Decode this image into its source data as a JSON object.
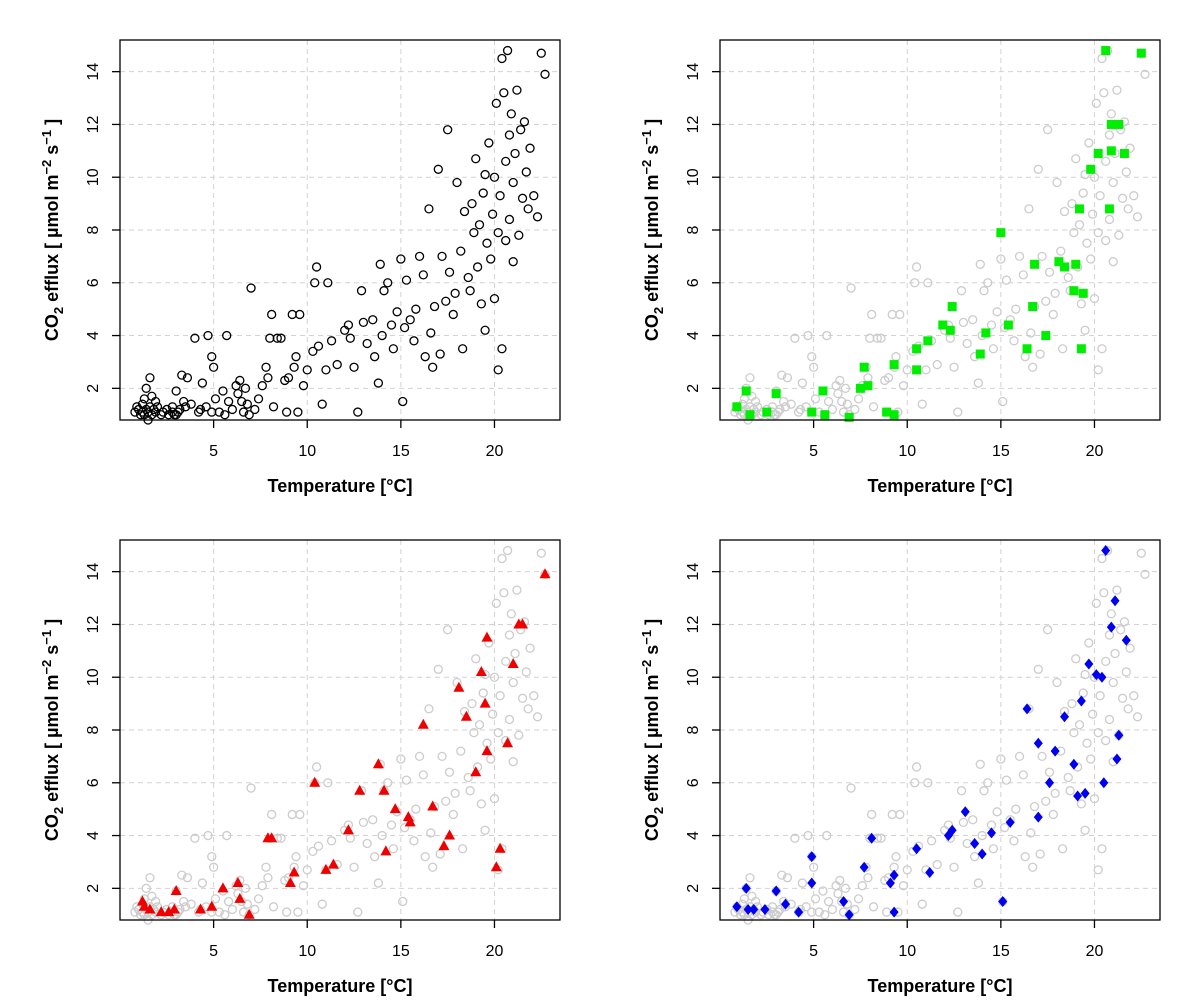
{
  "chart_data": [
    {
      "type": "scatter",
      "panel": "top-left",
      "xlabel": "Temperature [°C]",
      "ylabel": "CO₂ efflux [ µmol m⁻² s⁻¹ ]",
      "ylabel_parts": {
        "pre": "CO",
        "sub": "2",
        "mid": " efflux [ µmol m",
        "sup1": "−2",
        "mid2": " s",
        "sup2": "−1",
        "end": " ]"
      },
      "xlim": [
        0,
        23.5
      ],
      "ylim": [
        0.8,
        15.2
      ],
      "xticks": [
        "5",
        "10",
        "15",
        "20"
      ],
      "yticks": [
        "2",
        "4",
        "6",
        "8",
        "10",
        "12",
        "14"
      ],
      "grid": true,
      "background_series": null,
      "series": [
        {
          "marker": "open-circle",
          "color": "#000000",
          "source": "all"
        }
      ]
    },
    {
      "type": "scatter",
      "panel": "top-right",
      "xlabel": "Temperature [°C]",
      "ylabel": "CO₂ efflux [ µmol m⁻² s⁻¹ ]",
      "xlim": [
        0,
        23.5
      ],
      "ylim": [
        0.8,
        15.2
      ],
      "xticks": [
        "5",
        "10",
        "15",
        "20"
      ],
      "yticks": [
        "2",
        "4",
        "6",
        "8",
        "10",
        "12",
        "14"
      ],
      "grid": true,
      "background_series": {
        "marker": "open-circle",
        "color": "#cccccc",
        "source": "all"
      },
      "series": [
        {
          "marker": "square",
          "color": "#00ee00",
          "points": [
            [
              0.9,
              1.3
            ],
            [
              1.4,
              1.9
            ],
            [
              1.6,
              1.0
            ],
            [
              2.5,
              1.1
            ],
            [
              3.0,
              1.8
            ],
            [
              4.9,
              1.1
            ],
            [
              5.5,
              1.9
            ],
            [
              5.6,
              1.0
            ],
            [
              6.9,
              0.9
            ],
            [
              7.5,
              2.0
            ],
            [
              7.7,
              2.8
            ],
            [
              7.9,
              2.1
            ],
            [
              8.9,
              1.1
            ],
            [
              9.3,
              1.0
            ],
            [
              9.3,
              2.9
            ],
            [
              10.5,
              2.7
            ],
            [
              10.5,
              3.5
            ],
            [
              11.1,
              3.8
            ],
            [
              11.9,
              4.4
            ],
            [
              12.3,
              4.2
            ],
            [
              12.4,
              5.1
            ],
            [
              13.9,
              3.3
            ],
            [
              14.2,
              4.1
            ],
            [
              15.0,
              7.9
            ],
            [
              15.4,
              4.4
            ],
            [
              16.4,
              3.5
            ],
            [
              16.7,
              5.1
            ],
            [
              16.8,
              6.7
            ],
            [
              17.4,
              4.0
            ],
            [
              18.1,
              6.8
            ],
            [
              18.4,
              6.6
            ],
            [
              18.9,
              5.7
            ],
            [
              19.0,
              6.7
            ],
            [
              19.2,
              8.8
            ],
            [
              19.3,
              3.5
            ],
            [
              19.4,
              5.6
            ],
            [
              19.8,
              10.3
            ],
            [
              20.2,
              10.9
            ],
            [
              20.6,
              14.8
            ],
            [
              20.8,
              8.8
            ],
            [
              20.9,
              12.0
            ],
            [
              20.9,
              11.0
            ],
            [
              21.3,
              12.0
            ],
            [
              21.6,
              10.9
            ],
            [
              22.5,
              14.7
            ]
          ]
        }
      ]
    },
    {
      "type": "scatter",
      "panel": "bottom-left",
      "xlabel": "Temperature [°C]",
      "ylabel": "CO₂ efflux [ µmol m⁻² s⁻¹ ]",
      "xlim": [
        0,
        23.5
      ],
      "ylim": [
        0.8,
        15.2
      ],
      "xticks": [
        "5",
        "10",
        "15",
        "20"
      ],
      "yticks": [
        "2",
        "4",
        "6",
        "8",
        "10",
        "12",
        "14"
      ],
      "grid": true,
      "background_series": {
        "marker": "open-circle",
        "color": "#cccccc",
        "source": "all"
      },
      "series": [
        {
          "marker": "triangle",
          "color": "#ee0000",
          "points": [
            [
              1.2,
              1.5
            ],
            [
              1.3,
              1.3
            ],
            [
              1.6,
              1.2
            ],
            [
              2.2,
              1.1
            ],
            [
              2.6,
              1.1
            ],
            [
              2.9,
              1.2
            ],
            [
              3.0,
              1.9
            ],
            [
              4.3,
              1.2
            ],
            [
              4.9,
              1.3
            ],
            [
              5.5,
              2.0
            ],
            [
              6.3,
              2.2
            ],
            [
              6.4,
              1.6
            ],
            [
              6.9,
              1.0
            ],
            [
              7.9,
              3.9
            ],
            [
              8.1,
              3.9
            ],
            [
              9.1,
              2.2
            ],
            [
              9.3,
              2.6
            ],
            [
              10.4,
              6.0
            ],
            [
              11.0,
              2.7
            ],
            [
              11.4,
              2.9
            ],
            [
              12.2,
              4.2
            ],
            [
              12.8,
              5.7
            ],
            [
              13.8,
              6.7
            ],
            [
              14.1,
              5.7
            ],
            [
              14.2,
              3.4
            ],
            [
              14.7,
              5.0
            ],
            [
              15.4,
              4.7
            ],
            [
              15.5,
              4.5
            ],
            [
              16.2,
              8.2
            ],
            [
              16.7,
              5.1
            ],
            [
              17.3,
              3.6
            ],
            [
              17.6,
              4.0
            ],
            [
              18.1,
              9.6
            ],
            [
              18.5,
              8.5
            ],
            [
              19.0,
              6.4
            ],
            [
              19.3,
              10.2
            ],
            [
              19.5,
              9.0
            ],
            [
              19.6,
              11.5
            ],
            [
              19.6,
              7.2
            ],
            [
              20.1,
              2.8
            ],
            [
              20.3,
              3.5
            ],
            [
              20.7,
              7.5
            ],
            [
              21.0,
              10.5
            ],
            [
              21.3,
              12.0
            ],
            [
              21.5,
              12.0
            ],
            [
              22.7,
              13.9
            ]
          ]
        }
      ]
    },
    {
      "type": "scatter",
      "panel": "bottom-right",
      "xlabel": "Temperature [°C]",
      "ylabel": "CO₂ efflux [ µmol m⁻² s⁻¹ ]",
      "xlim": [
        0,
        23.5
      ],
      "ylim": [
        0.8,
        15.2
      ],
      "xticks": [
        "5",
        "10",
        "15",
        "20"
      ],
      "yticks": [
        "2",
        "4",
        "6",
        "8",
        "10",
        "12",
        "14"
      ],
      "grid": true,
      "background_series": {
        "marker": "open-circle",
        "color": "#cccccc",
        "source": "all"
      },
      "series": [
        {
          "marker": "diamond",
          "color": "#0000ee",
          "points": [
            [
              0.9,
              1.3
            ],
            [
              1.4,
              2.0
            ],
            [
              1.5,
              1.2
            ],
            [
              1.8,
              1.2
            ],
            [
              2.4,
              1.2
            ],
            [
              3.0,
              1.9
            ],
            [
              3.5,
              1.4
            ],
            [
              4.2,
              1.1
            ],
            [
              4.9,
              3.2
            ],
            [
              4.9,
              2.2
            ],
            [
              6.6,
              1.5
            ],
            [
              6.9,
              1.0
            ],
            [
              7.7,
              2.8
            ],
            [
              8.1,
              3.9
            ],
            [
              9.1,
              2.2
            ],
            [
              9.3,
              1.1
            ],
            [
              9.3,
              2.5
            ],
            [
              10.5,
              3.5
            ],
            [
              11.2,
              2.6
            ],
            [
              12.2,
              4.0
            ],
            [
              12.4,
              4.2
            ],
            [
              13.1,
              4.9
            ],
            [
              13.6,
              3.7
            ],
            [
              14.0,
              3.3
            ],
            [
              14.5,
              4.1
            ],
            [
              15.1,
              1.5
            ],
            [
              15.5,
              4.5
            ],
            [
              16.4,
              8.8
            ],
            [
              17.0,
              7.5
            ],
            [
              17.0,
              4.7
            ],
            [
              17.6,
              6.0
            ],
            [
              17.9,
              7.2
            ],
            [
              18.4,
              8.5
            ],
            [
              18.9,
              6.7
            ],
            [
              19.1,
              5.5
            ],
            [
              19.3,
              9.1
            ],
            [
              19.5,
              5.6
            ],
            [
              19.7,
              10.5
            ],
            [
              20.1,
              10.1
            ],
            [
              20.4,
              10.0
            ],
            [
              20.5,
              6.0
            ],
            [
              20.6,
              14.8
            ],
            [
              20.9,
              11.9
            ],
            [
              21.1,
              12.9
            ],
            [
              21.2,
              6.9
            ],
            [
              21.3,
              7.8
            ],
            [
              21.7,
              11.4
            ]
          ]
        }
      ]
    }
  ],
  "all_points": [
    [
      0.8,
      1.1
    ],
    [
      0.9,
      1.3
    ],
    [
      1.0,
      1.2
    ],
    [
      1.1,
      1.0
    ],
    [
      1.2,
      1.4
    ],
    [
      1.2,
      1.1
    ],
    [
      1.3,
      1.6
    ],
    [
      1.3,
      1.0
    ],
    [
      1.4,
      1.2
    ],
    [
      1.4,
      2.0
    ],
    [
      1.5,
      1.1
    ],
    [
      1.5,
      0.8
    ],
    [
      1.6,
      1.3
    ],
    [
      1.6,
      2.4
    ],
    [
      1.7,
      1.0
    ],
    [
      1.7,
      1.7
    ],
    [
      1.8,
      1.2
    ],
    [
      1.9,
      1.5
    ],
    [
      1.9,
      1.1
    ],
    [
      2.0,
      1.3
    ],
    [
      2.2,
      1.0
    ],
    [
      2.3,
      1.1
    ],
    [
      2.5,
      1.2
    ],
    [
      2.6,
      1.0
    ],
    [
      2.8,
      1.1
    ],
    [
      2.8,
      1.3
    ],
    [
      2.9,
      1.0
    ],
    [
      3.0,
      1.0
    ],
    [
      3.0,
      1.9
    ],
    [
      3.1,
      1.1
    ],
    [
      3.2,
      1.2
    ],
    [
      3.3,
      2.5
    ],
    [
      3.4,
      1.5
    ],
    [
      3.5,
      1.3
    ],
    [
      3.6,
      2.4
    ],
    [
      3.8,
      1.4
    ],
    [
      4.0,
      3.9
    ],
    [
      4.2,
      1.1
    ],
    [
      4.3,
      1.2
    ],
    [
      4.4,
      2.2
    ],
    [
      4.6,
      1.3
    ],
    [
      4.7,
      4.0
    ],
    [
      4.9,
      1.1
    ],
    [
      4.9,
      3.2
    ],
    [
      5.0,
      2.8
    ],
    [
      5.1,
      1.6
    ],
    [
      5.3,
      1.1
    ],
    [
      5.5,
      1.9
    ],
    [
      5.6,
      1.0
    ],
    [
      5.7,
      4.0
    ],
    [
      5.8,
      1.5
    ],
    [
      6.0,
      1.2
    ],
    [
      6.2,
      2.1
    ],
    [
      6.3,
      1.8
    ],
    [
      6.4,
      2.3
    ],
    [
      6.5,
      1.5
    ],
    [
      6.6,
      1.1
    ],
    [
      6.7,
      2.0
    ],
    [
      6.8,
      1.4
    ],
    [
      6.9,
      1.0
    ],
    [
      7.0,
      5.8
    ],
    [
      7.2,
      1.2
    ],
    [
      7.4,
      1.6
    ],
    [
      7.6,
      2.1
    ],
    [
      7.8,
      2.8
    ],
    [
      7.9,
      2.4
    ],
    [
      8.0,
      3.9
    ],
    [
      8.1,
      4.8
    ],
    [
      8.2,
      1.3
    ],
    [
      8.4,
      3.9
    ],
    [
      8.6,
      3.9
    ],
    [
      8.8,
      2.3
    ],
    [
      8.9,
      1.1
    ],
    [
      9.0,
      2.4
    ],
    [
      9.2,
      4.8
    ],
    [
      9.3,
      2.8
    ],
    [
      9.4,
      3.2
    ],
    [
      9.5,
      1.1
    ],
    [
      9.6,
      4.8
    ],
    [
      9.8,
      2.1
    ],
    [
      10.0,
      2.7
    ],
    [
      10.3,
      3.4
    ],
    [
      10.4,
      6.0
    ],
    [
      10.5,
      6.6
    ],
    [
      10.6,
      3.6
    ],
    [
      10.8,
      1.4
    ],
    [
      11.0,
      2.7
    ],
    [
      11.1,
      6.0
    ],
    [
      11.3,
      3.8
    ],
    [
      11.6,
      2.9
    ],
    [
      12.0,
      4.2
    ],
    [
      12.2,
      4.4
    ],
    [
      12.3,
      3.9
    ],
    [
      12.5,
      2.8
    ],
    [
      12.7,
      1.1
    ],
    [
      12.9,
      5.7
    ],
    [
      13.0,
      4.5
    ],
    [
      13.2,
      3.7
    ],
    [
      13.5,
      4.6
    ],
    [
      13.6,
      3.2
    ],
    [
      13.8,
      2.2
    ],
    [
      13.9,
      6.7
    ],
    [
      14.0,
      4.0
    ],
    [
      14.1,
      5.7
    ],
    [
      14.3,
      6.0
    ],
    [
      14.5,
      4.4
    ],
    [
      14.6,
      3.5
    ],
    [
      14.8,
      4.9
    ],
    [
      15.0,
      6.9
    ],
    [
      15.1,
      1.5
    ],
    [
      15.2,
      4.3
    ],
    [
      15.3,
      6.1
    ],
    [
      15.5,
      4.6
    ],
    [
      15.7,
      3.8
    ],
    [
      15.8,
      5.0
    ],
    [
      16.0,
      7.0
    ],
    [
      16.2,
      6.3
    ],
    [
      16.3,
      3.2
    ],
    [
      16.5,
      8.8
    ],
    [
      16.6,
      4.1
    ],
    [
      16.7,
      2.8
    ],
    [
      16.8,
      5.1
    ],
    [
      17.0,
      10.3
    ],
    [
      17.1,
      3.3
    ],
    [
      17.2,
      7.0
    ],
    [
      17.4,
      5.3
    ],
    [
      17.5,
      11.8
    ],
    [
      17.6,
      6.4
    ],
    [
      17.8,
      4.8
    ],
    [
      17.9,
      5.6
    ],
    [
      18.0,
      9.8
    ],
    [
      18.2,
      7.2
    ],
    [
      18.3,
      3.5
    ],
    [
      18.4,
      8.7
    ],
    [
      18.6,
      6.2
    ],
    [
      18.7,
      5.7
    ],
    [
      18.8,
      9.0
    ],
    [
      18.9,
      7.9
    ],
    [
      19.0,
      10.7
    ],
    [
      19.1,
      6.6
    ],
    [
      19.2,
      8.2
    ],
    [
      19.3,
      5.2
    ],
    [
      19.4,
      9.4
    ],
    [
      19.5,
      10.1
    ],
    [
      19.5,
      4.2
    ],
    [
      19.6,
      7.5
    ],
    [
      19.7,
      11.3
    ],
    [
      19.8,
      6.9
    ],
    [
      19.9,
      8.6
    ],
    [
      20.0,
      10.0
    ],
    [
      20.0,
      5.4
    ],
    [
      20.1,
      12.8
    ],
    [
      20.2,
      7.9
    ],
    [
      20.2,
      2.7
    ],
    [
      20.3,
      9.3
    ],
    [
      20.4,
      14.5
    ],
    [
      20.4,
      3.5
    ],
    [
      20.5,
      13.2
    ],
    [
      20.6,
      10.6
    ],
    [
      20.6,
      7.6
    ],
    [
      20.7,
      14.8
    ],
    [
      20.8,
      8.4
    ],
    [
      20.8,
      11.6
    ],
    [
      20.9,
      12.4
    ],
    [
      21.0,
      9.8
    ],
    [
      21.0,
      6.8
    ],
    [
      21.1,
      10.9
    ],
    [
      21.2,
      13.3
    ],
    [
      21.3,
      7.8
    ],
    [
      21.4,
      11.8
    ],
    [
      21.5,
      9.2
    ],
    [
      21.6,
      12.1
    ],
    [
      21.7,
      10.2
    ],
    [
      21.8,
      8.8
    ],
    [
      21.9,
      11.1
    ],
    [
      22.1,
      9.3
    ],
    [
      22.3,
      8.5
    ],
    [
      22.5,
      14.7
    ],
    [
      22.7,
      13.9
    ]
  ]
}
